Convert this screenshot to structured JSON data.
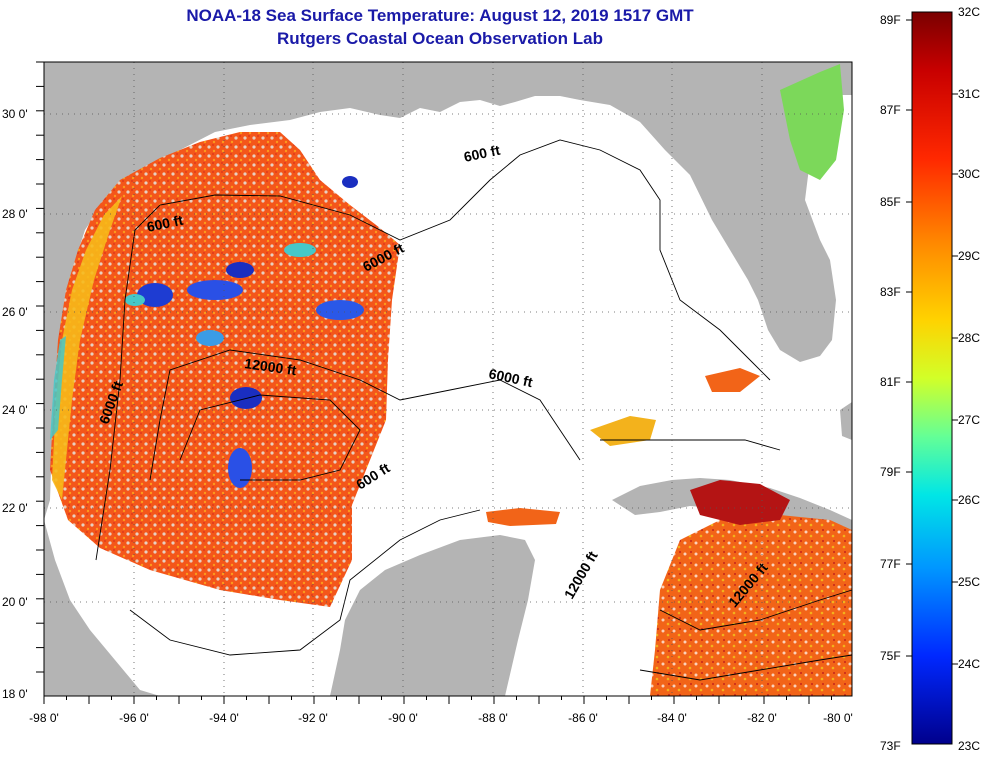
{
  "header": {
    "title_line1": "NOAA-18 Sea Surface Temperature:  August 12, 2019 1517 GMT",
    "title_line2": "Rutgers Coastal Ocean Observation Lab"
  },
  "map": {
    "lat_ticks": [
      "30 0'",
      "28 0'",
      "26 0'",
      "24 0'",
      "22 0'",
      "20 0'",
      "18 0'"
    ],
    "lon_ticks": [
      "-98 0'",
      "-96 0'",
      "-94 0'",
      "-92 0'",
      "-90 0'",
      "-88 0'",
      "-86 0'",
      "-84 0'",
      "-82 0'",
      "-80 0'"
    ],
    "contour_labels": [
      "600 ft",
      "600 ft",
      "6000 ft",
      "12000 ft",
      "6000 ft",
      "6000 ft",
      "600 ft",
      "12000 ft",
      "12000 ft"
    ],
    "colors": {
      "land": "#b4b4b4",
      "no_data": "#ffffff",
      "warm": "#f05a14"
    }
  },
  "colorbar": {
    "fahrenheit_labels": [
      "89F",
      "87F",
      "85F",
      "83F",
      "81F",
      "79F",
      "77F",
      "75F",
      "73F"
    ],
    "celsius_labels": [
      "32C",
      "31C",
      "30C",
      "29C",
      "28C",
      "27C",
      "26C",
      "25C",
      "24C",
      "23C"
    ]
  }
}
